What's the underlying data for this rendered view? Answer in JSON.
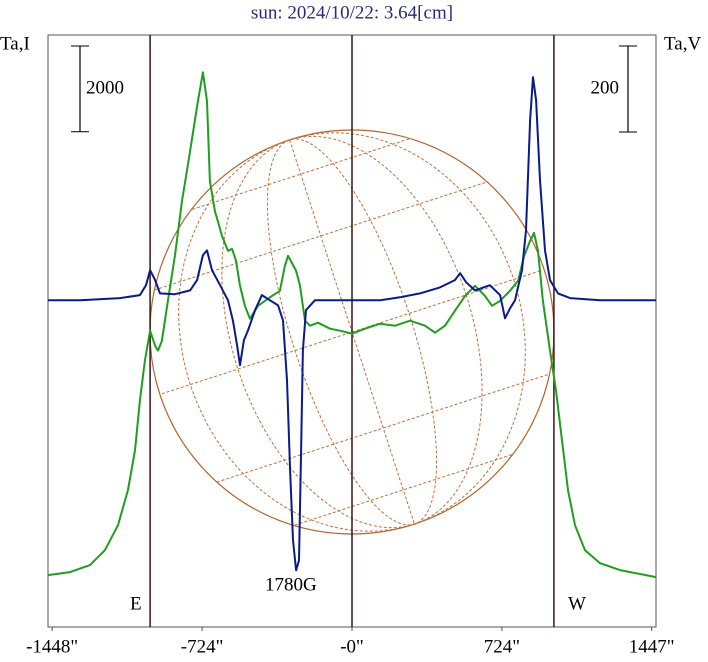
{
  "chart_data": {
    "type": "line",
    "title": "sun: 2024/10/22: 3.64[cm]",
    "y_label": "Ta,I",
    "y2_label": "Ta,V",
    "scale_bar_left": 2000,
    "scale_bar_right": 200,
    "annotations": {
      "east": "E",
      "west": "W",
      "peak": "1780G"
    },
    "xlim": [
      -1468,
      1468
    ],
    "xticks": [
      {
        "value": -1448,
        "label": "-1448\""
      },
      {
        "value": -724,
        "label": "-724\""
      },
      {
        "value": 0,
        "label": "-0\""
      },
      {
        "value": 724,
        "label": "724\""
      },
      {
        "value": 1447,
        "label": "1447\""
      }
    ],
    "vlines": [
      -975,
      0,
      975
    ],
    "ylim": [
      0,
      13800
    ],
    "y2lim": [
      -760,
      617
    ],
    "series": [
      {
        "name": "Ta,I",
        "color": "#1f9e1f",
        "x": [
          -1468,
          -1362,
          -1265,
          -1193,
          -1130,
          -1082,
          -1048,
          -1024,
          -1000,
          -975,
          -951,
          -937,
          -918,
          -889,
          -855,
          -821,
          -782,
          -748,
          -720,
          -700,
          -686,
          -662,
          -628,
          -599,
          -579,
          -560,
          -541,
          -517,
          -493,
          -454,
          -420,
          -386,
          -348,
          -324,
          -309,
          -290,
          -270,
          -251,
          -227,
          -203,
          -164,
          -106,
          -58,
          0,
          63,
          135,
          208,
          280,
          353,
          401,
          449,
          497,
          546,
          594,
          642,
          676,
          715,
          763,
          802,
          831,
          860,
          879,
          898,
          922,
          956,
          985,
          1014,
          1043,
          1077,
          1125,
          1198,
          1294,
          1468
        ],
        "values": [
          1209,
          1279,
          1442,
          1791,
          2372,
          3186,
          4117,
          5280,
          6210,
          6907,
          6558,
          6442,
          6674,
          7605,
          8651,
          9930,
          11093,
          12140,
          12930,
          12256,
          10395,
          9698,
          9116,
          8767,
          8814,
          8535,
          7953,
          7488,
          7186,
          7488,
          7605,
          7721,
          7837,
          8419,
          8651,
          8488,
          8302,
          7953,
          7140,
          7023,
          7093,
          6953,
          6907,
          6837,
          6953,
          7070,
          7023,
          7140,
          7023,
          6860,
          7023,
          7372,
          7721,
          7953,
          7721,
          7488,
          7605,
          7837,
          8070,
          8651,
          9000,
          9186,
          8767,
          7605,
          6442,
          5512,
          4349,
          3186,
          2372,
          1791,
          1488,
          1326,
          1163
        ]
      },
      {
        "name": "Ta,V",
        "color": "#0a1a8c",
        "axis": "y2",
        "x": [
          -1468,
          -1313,
          -1120,
          -1024,
          -995,
          -975,
          -951,
          -927,
          -855,
          -782,
          -748,
          -720,
          -700,
          -676,
          -637,
          -599,
          -575,
          -555,
          -541,
          -522,
          -502,
          -468,
          -435,
          -396,
          -357,
          -333,
          -314,
          -299,
          -285,
          -270,
          -256,
          -246,
          -237,
          -222,
          -179,
          -58,
          135,
          232,
          328,
          425,
          497,
          522,
          551,
          594,
          666,
          715,
          739,
          763,
          787,
          821,
          840,
          860,
          874,
          889,
          908,
          932,
          956,
          995,
          1053,
          1198,
          1468
        ],
        "values": [
          0,
          0,
          5,
          12,
          35,
          70,
          47,
          16,
          14,
          23,
          47,
          105,
          116,
          70,
          35,
          0,
          -47,
          -105,
          -151,
          -93,
          -70,
          -23,
          12,
          0,
          -12,
          -47,
          -186,
          -395,
          -558,
          -628,
          -605,
          -349,
          -116,
          -23,
          0,
          0,
          0,
          7,
          16,
          30,
          47,
          63,
          42,
          23,
          35,
          12,
          -42,
          -19,
          0,
          70,
          163,
          419,
          519,
          465,
          279,
          116,
          47,
          16,
          5,
          0,
          0
        ]
      }
    ]
  }
}
